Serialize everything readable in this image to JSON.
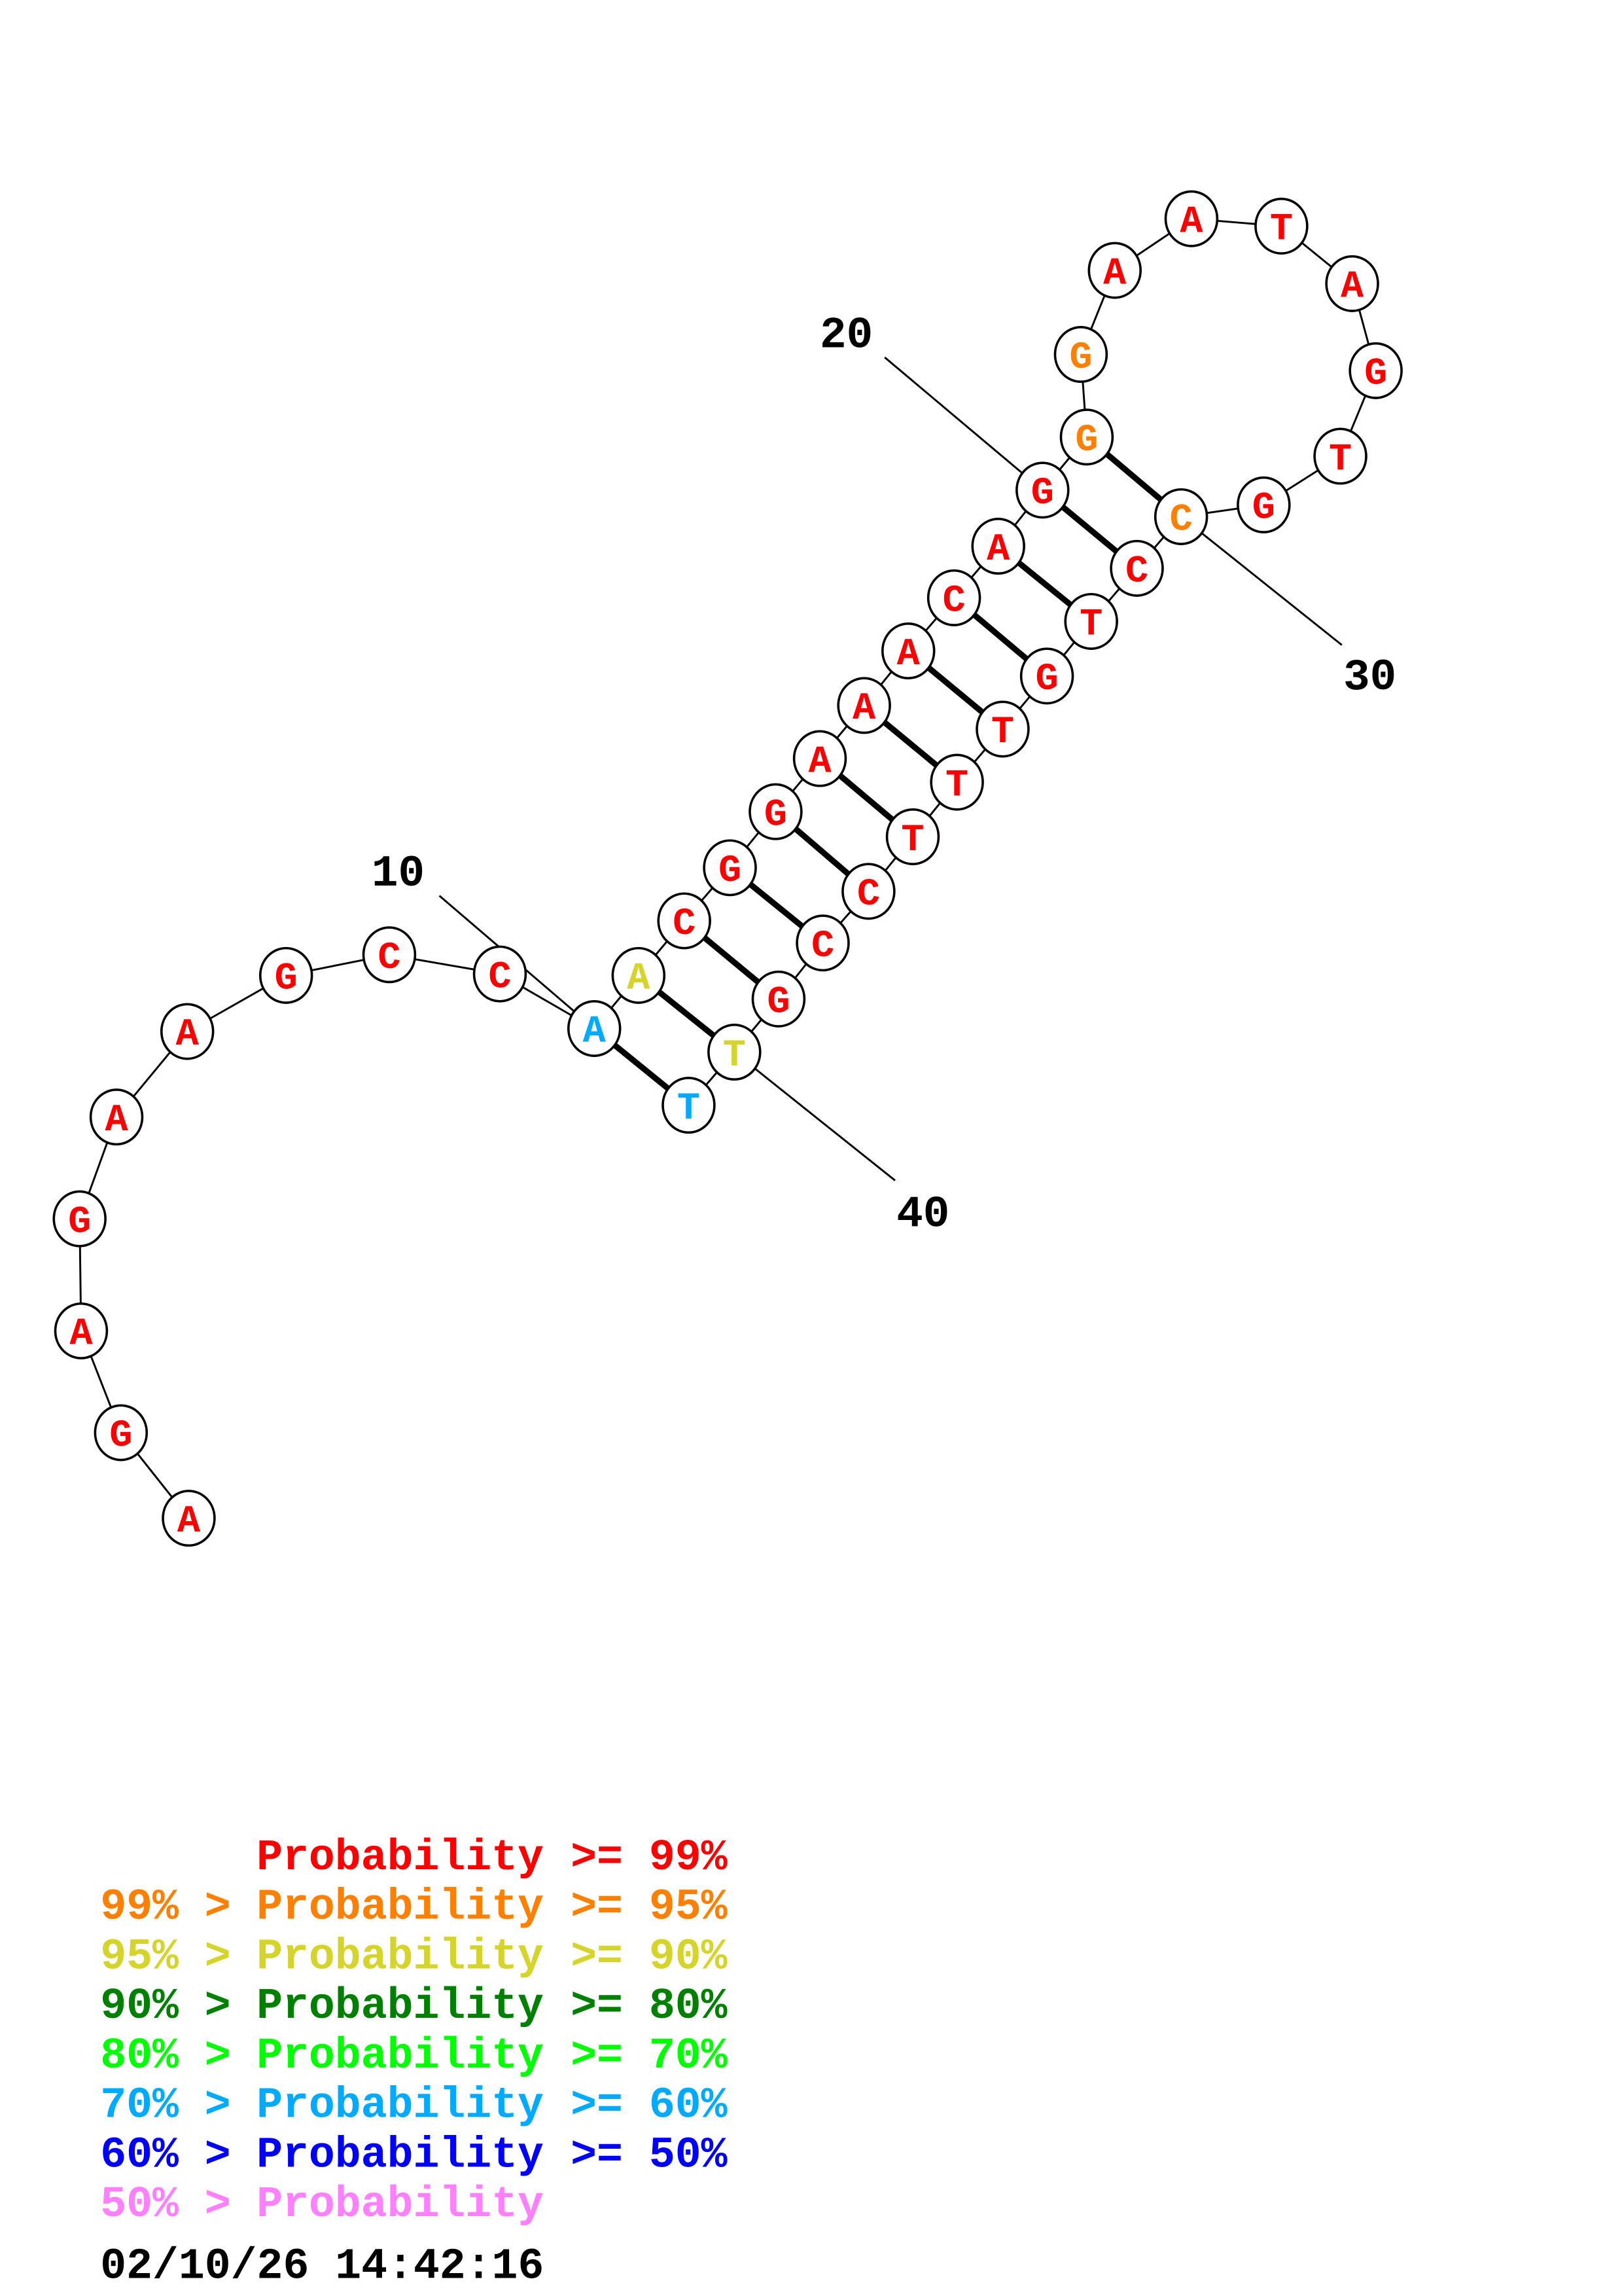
{
  "structure": {
    "sequence": [
      {
        "base": "A",
        "color": "#ff0000"
      },
      {
        "base": "G",
        "color": "#ff0000"
      },
      {
        "base": "A",
        "color": "#ff0000"
      },
      {
        "base": "G",
        "color": "#ff0000"
      },
      {
        "base": "A",
        "color": "#ff0000"
      },
      {
        "base": "A",
        "color": "#ff0000"
      },
      {
        "base": "G",
        "color": "#ff0000"
      },
      {
        "base": "C",
        "color": "#ff0000"
      },
      {
        "base": "C",
        "color": "#ff0000"
      },
      {
        "base": "A",
        "color": "#00aaff"
      },
      {
        "base": "A",
        "color": "#d4d42a"
      },
      {
        "base": "C",
        "color": "#ff0000"
      },
      {
        "base": "G",
        "color": "#ff0000"
      },
      {
        "base": "G",
        "color": "#ff0000"
      },
      {
        "base": "A",
        "color": "#ff0000"
      },
      {
        "base": "A",
        "color": "#ff0000"
      },
      {
        "base": "A",
        "color": "#ff0000"
      },
      {
        "base": "C",
        "color": "#ff0000"
      },
      {
        "base": "A",
        "color": "#ff0000"
      },
      {
        "base": "G",
        "color": "#ff0000"
      },
      {
        "base": "G",
        "color": "#ff8000"
      },
      {
        "base": "G",
        "color": "#ff8000"
      },
      {
        "base": "A",
        "color": "#ff0000"
      },
      {
        "base": "A",
        "color": "#ff0000"
      },
      {
        "base": "T",
        "color": "#ff0000"
      },
      {
        "base": "A",
        "color": "#ff0000"
      },
      {
        "base": "G",
        "color": "#ff0000"
      },
      {
        "base": "T",
        "color": "#ff0000"
      },
      {
        "base": "G",
        "color": "#ff0000"
      },
      {
        "base": "C",
        "color": "#ff8000"
      },
      {
        "base": "C",
        "color": "#ff0000"
      },
      {
        "base": "T",
        "color": "#ff0000"
      },
      {
        "base": "G",
        "color": "#ff0000"
      },
      {
        "base": "T",
        "color": "#ff0000"
      },
      {
        "base": "T",
        "color": "#ff0000"
      },
      {
        "base": "T",
        "color": "#ff0000"
      },
      {
        "base": "C",
        "color": "#ff0000"
      },
      {
        "base": "C",
        "color": "#ff0000"
      },
      {
        "base": "G",
        "color": "#ff0000"
      },
      {
        "base": "T",
        "color": "#d4d42a"
      },
      {
        "base": "T",
        "color": "#00aaff"
      }
    ],
    "pairs": [
      [
        10,
        41
      ],
      [
        11,
        40
      ],
      [
        12,
        39
      ],
      [
        13,
        38
      ],
      [
        14,
        37
      ],
      [
        15,
        36
      ],
      [
        16,
        35
      ],
      [
        17,
        34
      ],
      [
        18,
        33
      ],
      [
        19,
        32
      ],
      [
        20,
        31
      ],
      [
        21,
        30
      ]
    ],
    "position_labels": [
      "10",
      "20",
      "30",
      "40"
    ]
  },
  "legend": [
    {
      "left": "",
      "mid": "Probability",
      "right": ">= 99%",
      "color": "#ff0000"
    },
    {
      "left": "99% >",
      "mid": "Probability",
      "right": ">= 95%",
      "color": "#ff8000"
    },
    {
      "left": "95% >",
      "mid": "Probability",
      "right": ">= 90%",
      "color": "#d4d42a"
    },
    {
      "left": "90% >",
      "mid": "Probability",
      "right": ">= 80%",
      "color": "#008000"
    },
    {
      "left": "80% >",
      "mid": "Probability",
      "right": ">= 70%",
      "color": "#00ff00"
    },
    {
      "left": "70% >",
      "mid": "Probability",
      "right": ">= 60%",
      "color": "#00aaff"
    },
    {
      "left": "60% >",
      "mid": "Probability",
      "right": ">= 50%",
      "color": "#0000ff"
    },
    {
      "left": "50% >",
      "mid": "Probability",
      "right": "",
      "color": "#ff80ff"
    }
  ],
  "timestamp": "02/10/26 14:42:16"
}
